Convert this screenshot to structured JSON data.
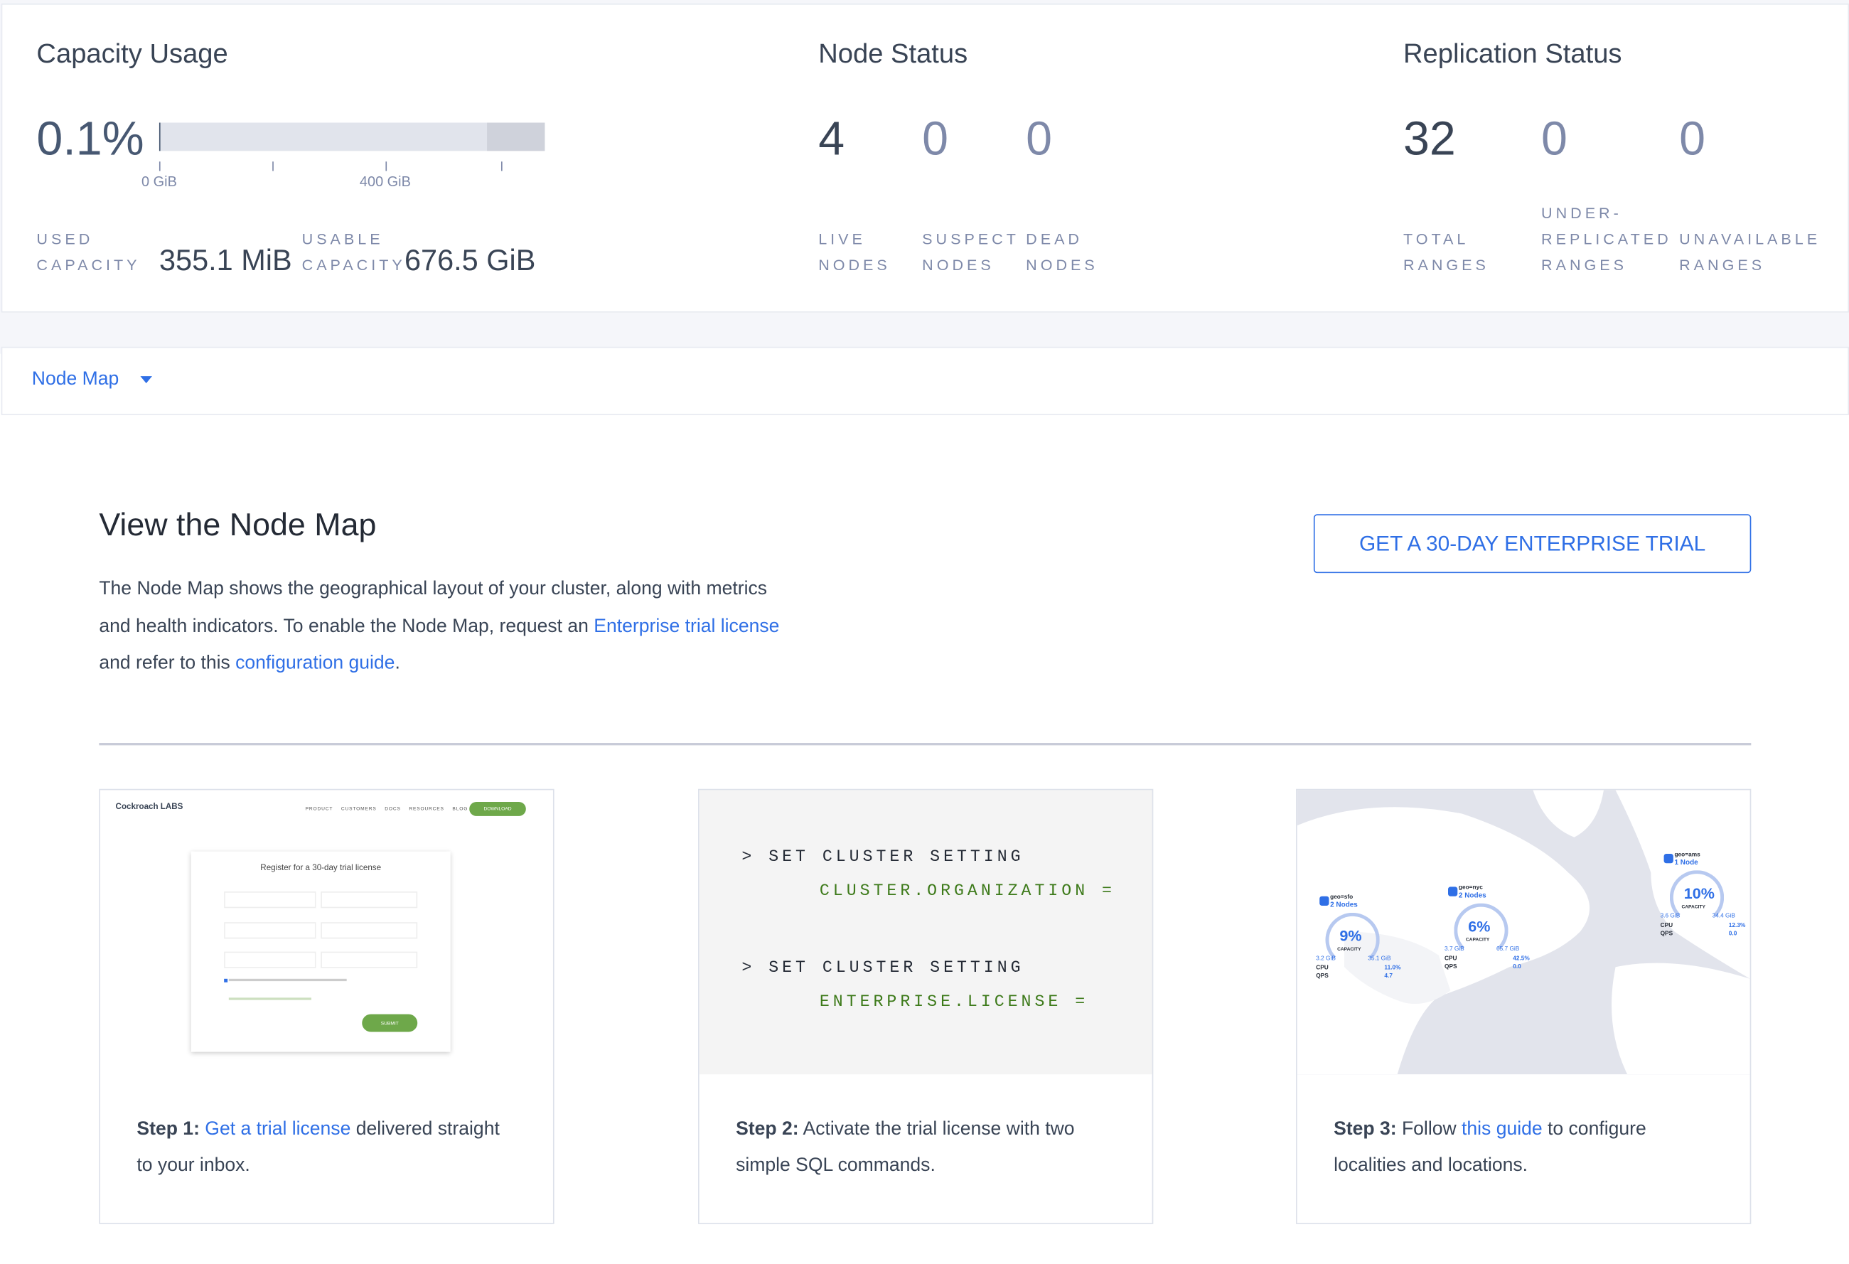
{
  "capacity": {
    "title": "Capacity Usage",
    "percent": "0.1%",
    "usage_fraction": 0.001,
    "ticks": [
      "0 GiB",
      "400 GiB"
    ],
    "used_label_1": "USED",
    "used_label_2": "CAPACITY",
    "used_value": "355.1 MiB",
    "usable_label_1": "USABLE",
    "usable_label_2": "CAPACITY",
    "usable_value": "676.5 GiB"
  },
  "node_status": {
    "title": "Node Status",
    "items": [
      {
        "value": "4",
        "label1": "LIVE",
        "label2": "NODES"
      },
      {
        "value": "0",
        "label1": "SUSPECT",
        "label2": "NODES"
      },
      {
        "value": "0",
        "label1": "DEAD",
        "label2": "NODES"
      }
    ]
  },
  "replication": {
    "title": "Replication Status",
    "items": [
      {
        "value": "32",
        "label0": "",
        "label1": "TOTAL",
        "label2": "RANGES"
      },
      {
        "value": "0",
        "label0": "UNDER-",
        "label1": "REPLICATED",
        "label2": "RANGES"
      },
      {
        "value": "0",
        "label0": "",
        "label1": "UNAVAILABLE",
        "label2": "RANGES"
      }
    ]
  },
  "dropdown": {
    "label": "Node Map",
    "icon": "caret-down-icon"
  },
  "promo": {
    "title": "View the Node Map",
    "text1": "The Node Map shows the geographical layout of your cluster, along with metrics and health indicators. To enable the Node Map, request an ",
    "link1": "Enterprise trial license",
    "text2": " and refer to this ",
    "link2": "configuration guide",
    "text3": ".",
    "trial_button": "GET A 30-DAY ENTERPRISE TRIAL"
  },
  "steps": [
    {
      "prefix": "Step 1:",
      "link": "Get a trial license",
      "text": " delivered straight to your inbox."
    },
    {
      "prefix": "Step 2:",
      "link": "",
      "text": " Activate the trial license with two simple SQL commands."
    },
    {
      "prefix": "Step 3:",
      "pre": " Follow ",
      "link": "this guide",
      "text": " to configure localities and locations."
    }
  ],
  "sql": {
    "line1": "> SET CLUSTER SETTING",
    "line2": "CLUSTER.ORGANIZATION =",
    "line3": "> SET CLUSTER SETTING",
    "line4": "ENTERPRISE.LICENSE ="
  },
  "thumb1": {
    "logo": "Cockroach LABS",
    "nav": [
      "PRODUCT",
      "CUSTOMERS",
      "DOCS",
      "RESOURCES",
      "BLOG"
    ],
    "download": "DOWNLOAD",
    "form_title": "Register for a 30-day trial license",
    "submit": "SUBMIT"
  },
  "thumb3": {
    "regions": [
      {
        "name": "geo=sfo",
        "nodes": "2 Nodes",
        "capacity": "9%",
        "cap_label": "CAPACITY",
        "used": "3.2 GiB",
        "total": "35.1 GiB",
        "cpu": "11.0%",
        "qps": "4.7"
      },
      {
        "name": "geo=nyc",
        "nodes": "2 Nodes",
        "capacity": "6%",
        "cap_label": "CAPACITY",
        "used": "3.7 GiB",
        "total": "65.7 GiB",
        "cpu": "42.5%",
        "qps": "0.0"
      },
      {
        "name": "geo=ams",
        "nodes": "1 Node",
        "capacity": "10%",
        "cap_label": "CAPACITY",
        "used": "3.6 GiB",
        "total": "34.4 GiB",
        "cpu": "12.3%",
        "qps": "0.0"
      }
    ]
  },
  "colors": {
    "accent": "#2f6fe6",
    "sql_green": "#3d7a1a",
    "bar": "#e1e4ec",
    "text": "#394455"
  }
}
